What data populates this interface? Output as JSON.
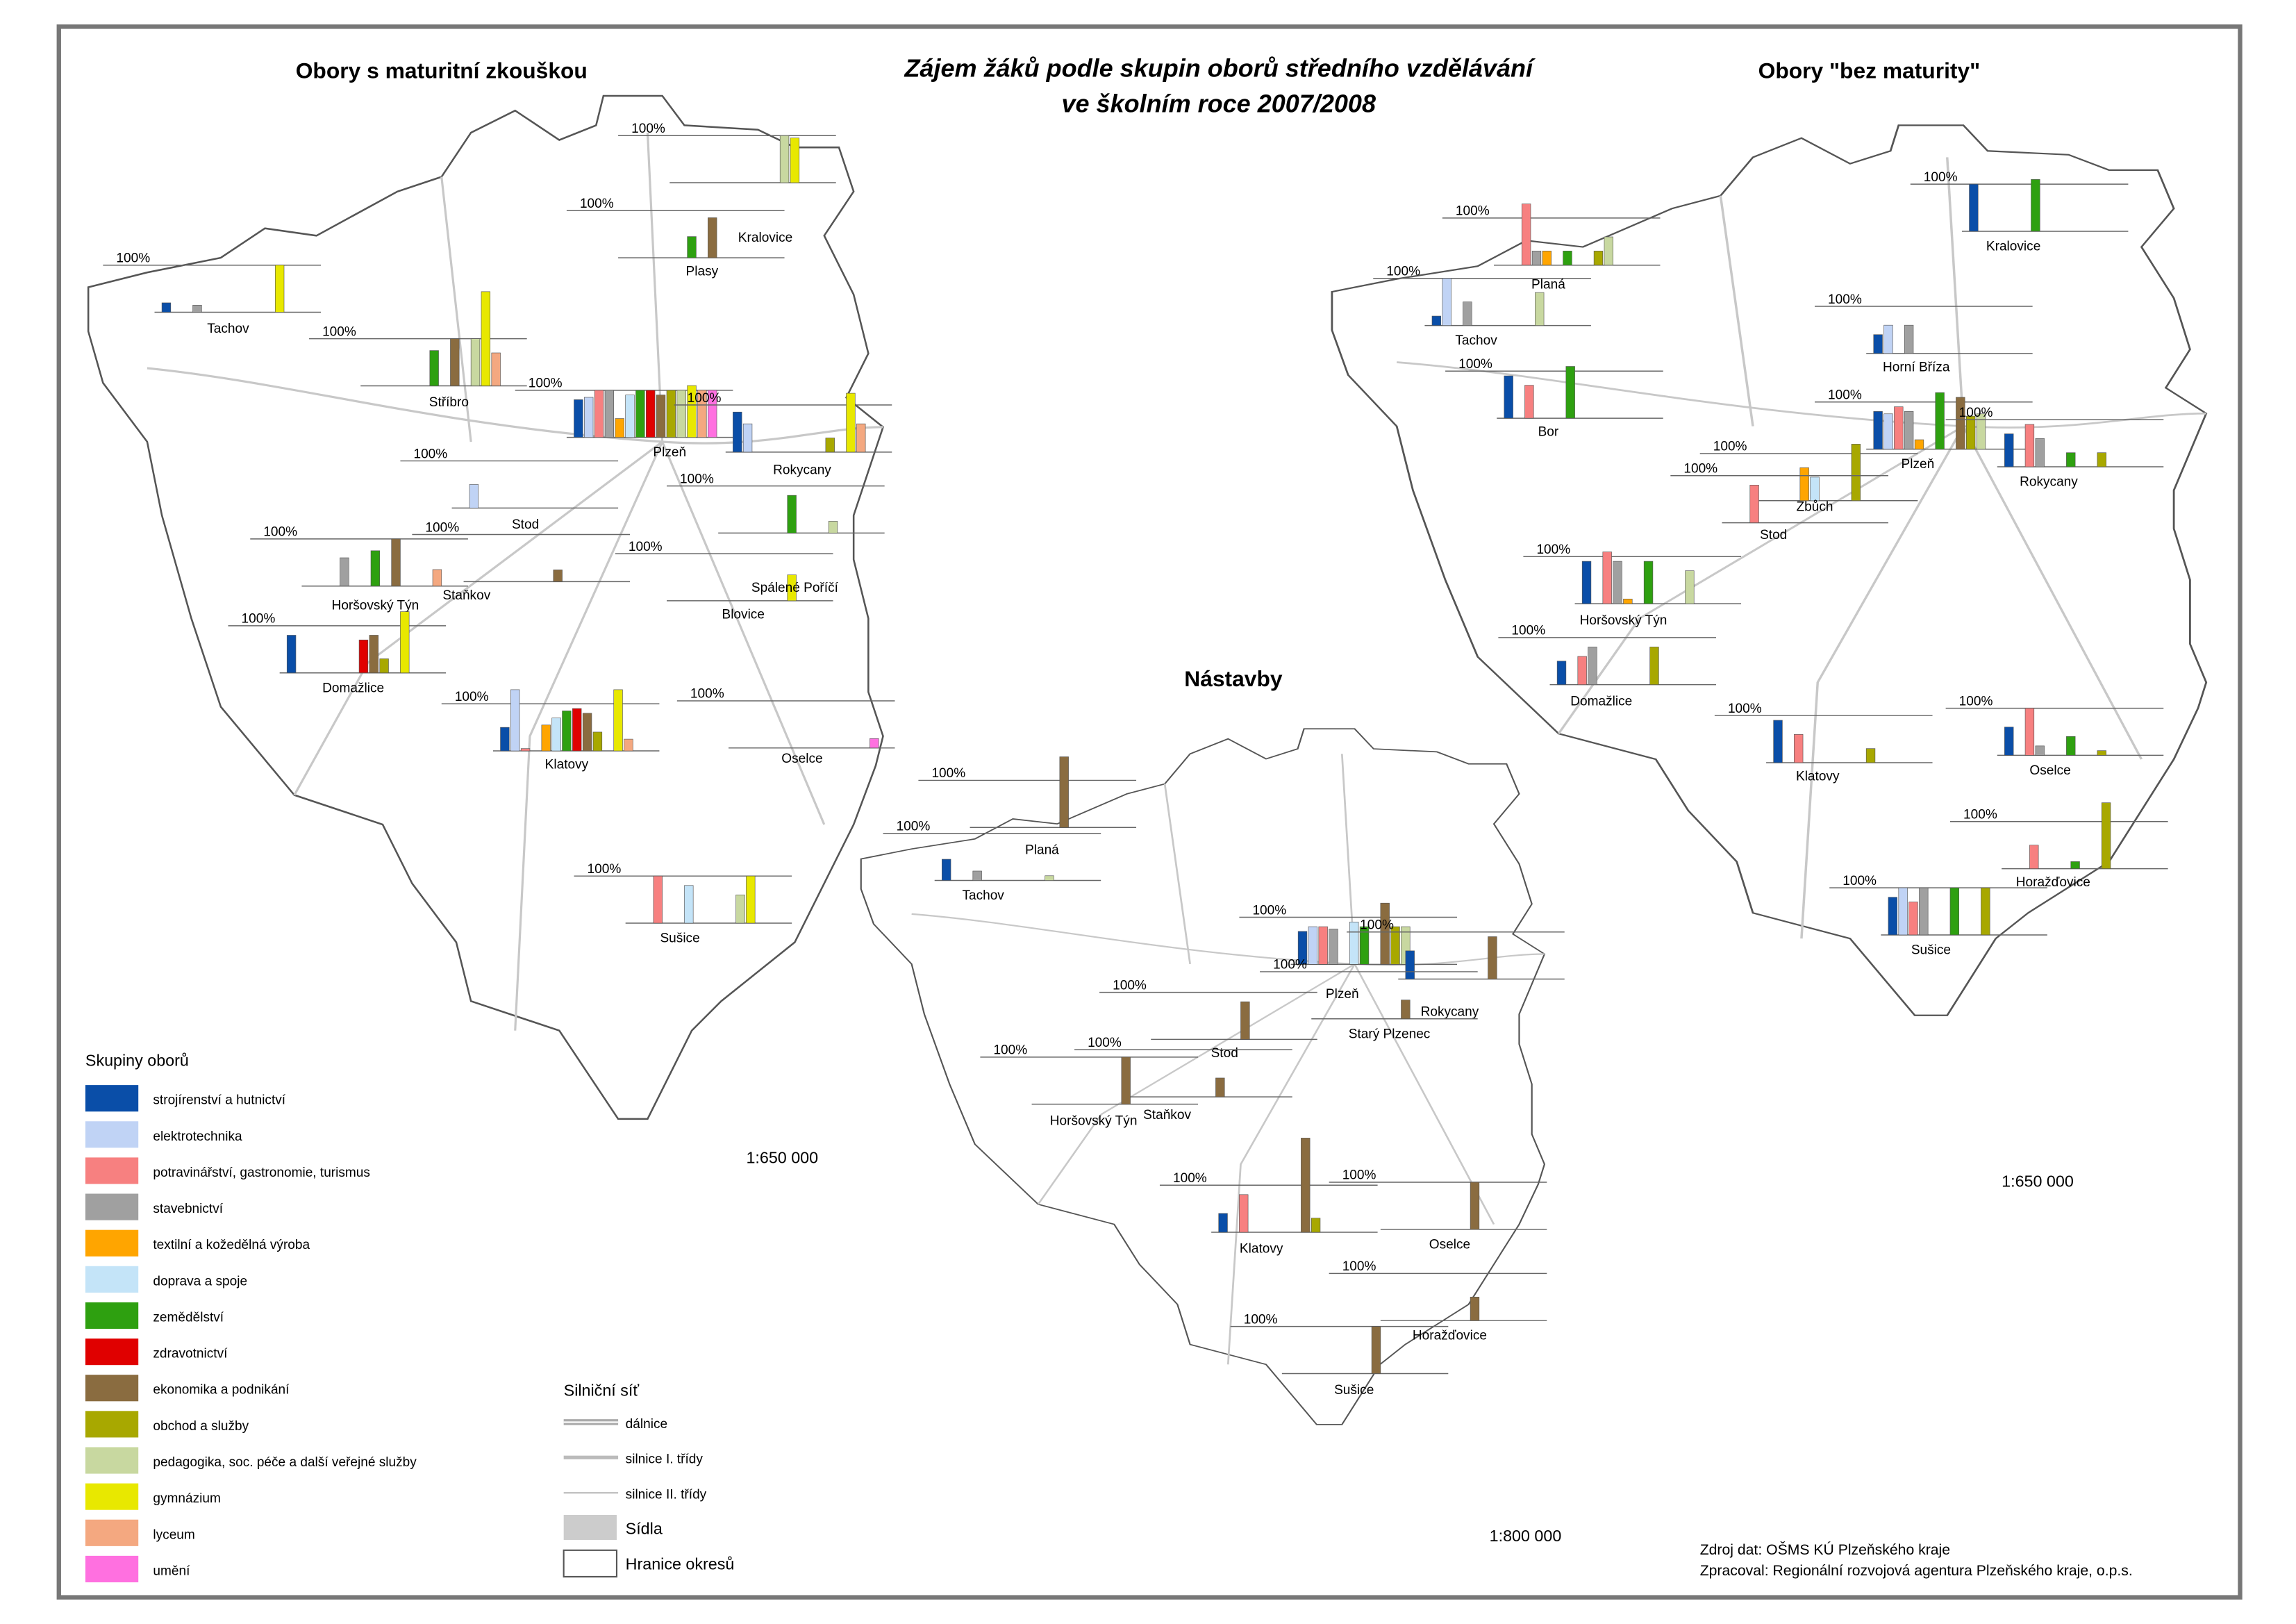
{
  "title": [
    "Zájem žáků podle skupin oborů středního vzdělávání",
    "ve školním roce 2007/2008"
  ],
  "reference_line": {
    "value": 100,
    "label": "100%"
  },
  "legend": {
    "title": "Skupiny oborů",
    "items": [
      {
        "name": "strojírenství a hutnictví",
        "color": "#0a4ea8"
      },
      {
        "name": "elektrotechnika",
        "color": "#c0d3f5"
      },
      {
        "name": "potravinářství, gastronomie, turismus",
        "color": "#f78080"
      },
      {
        "name": "stavebnictví",
        "color": "#a0a0a0"
      },
      {
        "name": "textilní a kožedělná výroba",
        "color": "#ffa500"
      },
      {
        "name": "doprava a spoje",
        "color": "#c4e4f8"
      },
      {
        "name": "zemědělství",
        "color": "#2ea010"
      },
      {
        "name": "zdravotnictví",
        "color": "#e00000"
      },
      {
        "name": "ekonomika a podnikání",
        "color": "#8a6c40"
      },
      {
        "name": "obchod a služby",
        "color": "#a8a800"
      },
      {
        "name": "pedagogika, soc. péče a další veřejné služby",
        "color": "#c8d8a0"
      },
      {
        "name": "gymnázium",
        "color": "#e8e800"
      },
      {
        "name": "lyceum",
        "color": "#f4a880"
      },
      {
        "name": "umění",
        "color": "#ff70e0"
      }
    ]
  },
  "road_legend": {
    "title": "Silniční síť",
    "items": [
      "dálnice",
      "silnice I. třídy",
      "silnice II. třídy",
      "Sídla",
      "Hranice okresů"
    ]
  },
  "source": [
    "Zdroj dat: OŠMS KÚ Plzeňského kraje",
    "Zpracoval: Regionální rozvojová agentura Plzeňského kraje, o.p.s."
  ],
  "maps": [
    {
      "title": "Obory s maturitní zkouškou",
      "scale": "1:650 000",
      "towns": [
        {
          "name": "Kralovice",
          "values": [
            null,
            null,
            null,
            null,
            null,
            null,
            null,
            null,
            null,
            null,
            100,
            95,
            null,
            null
          ]
        },
        {
          "name": "Plasy",
          "values": [
            null,
            null,
            null,
            null,
            null,
            null,
            45,
            null,
            85,
            null,
            null,
            null,
            null,
            null
          ]
        },
        {
          "name": "Tachov",
          "values": [
            20,
            null,
            null,
            15,
            null,
            null,
            null,
            null,
            null,
            null,
            null,
            100,
            null,
            null
          ]
        },
        {
          "name": "Stříbro",
          "values": [
            null,
            null,
            null,
            null,
            null,
            null,
            75,
            null,
            100,
            null,
            100,
            200,
            70,
            null
          ]
        },
        {
          "name": "Plzeň",
          "values": [
            80,
            85,
            100,
            100,
            40,
            90,
            100,
            100,
            90,
            100,
            100,
            110,
            100,
            100
          ]
        },
        {
          "name": "Rokycany",
          "values": [
            85,
            60,
            null,
            null,
            null,
            null,
            null,
            null,
            null,
            30,
            null,
            125,
            60,
            null
          ]
        },
        {
          "name": "Stod",
          "values": [
            null,
            50,
            null,
            null,
            null,
            null,
            null,
            null,
            null,
            null,
            null,
            null,
            null,
            null
          ]
        },
        {
          "name": "Horšovský Týn",
          "values": [
            null,
            null,
            null,
            60,
            null,
            null,
            75,
            null,
            100,
            null,
            null,
            null,
            35,
            null
          ]
        },
        {
          "name": "Staňkov",
          "values": [
            null,
            null,
            null,
            null,
            null,
            null,
            null,
            null,
            25,
            null,
            null,
            null,
            null,
            null
          ]
        },
        {
          "name": "Blovice",
          "values": [
            null,
            null,
            null,
            null,
            null,
            null,
            80,
            null,
            null,
            null,
            25,
            null,
            null,
            null
          ]
        },
        {
          "name": "Spálené Poříčí",
          "values": [
            null,
            null,
            null,
            null,
            null,
            null,
            null,
            null,
            null,
            null,
            null,
            55,
            null,
            null
          ]
        },
        {
          "name": "Domažlice",
          "values": [
            80,
            null,
            null,
            null,
            null,
            null,
            null,
            70,
            80,
            30,
            null,
            130,
            null,
            null
          ]
        },
        {
          "name": "Klatovy",
          "values": [
            50,
            130,
            5,
            null,
            55,
            70,
            85,
            90,
            80,
            40,
            null,
            130,
            25,
            null
          ]
        },
        {
          "name": "Oselce",
          "values": [
            null,
            null,
            null,
            null,
            null,
            null,
            null,
            null,
            null,
            null,
            null,
            null,
            null,
            20
          ]
        },
        {
          "name": "Sušice",
          "values": [
            null,
            null,
            100,
            null,
            null,
            80,
            null,
            null,
            null,
            null,
            60,
            100,
            null,
            null
          ]
        }
      ]
    },
    {
      "title": "Nástavby",
      "scale": "1:800 000",
      "towns": [
        {
          "name": "Planá",
          "values": [
            null,
            null,
            null,
            null,
            null,
            null,
            null,
            null,
            150,
            null,
            null,
            null,
            null,
            null
          ]
        },
        {
          "name": "Tachov",
          "values": [
            45,
            null,
            null,
            20,
            null,
            null,
            null,
            null,
            null,
            null,
            10,
            null,
            null,
            null
          ]
        },
        {
          "name": "Plzeň",
          "values": [
            70,
            80,
            80,
            75,
            null,
            90,
            80,
            null,
            130,
            80,
            80,
            null,
            null,
            null
          ]
        },
        {
          "name": "Rokycany",
          "values": [
            60,
            null,
            null,
            null,
            null,
            null,
            null,
            null,
            90,
            null,
            null,
            null,
            null,
            null
          ]
        },
        {
          "name": "Starý Plzenec",
          "values": [
            null,
            null,
            null,
            null,
            null,
            null,
            null,
            null,
            40,
            null,
            null,
            null,
            null,
            null
          ]
        },
        {
          "name": "Stod",
          "values": [
            null,
            null,
            null,
            null,
            null,
            null,
            null,
            null,
            80,
            null,
            null,
            null,
            null,
            null
          ]
        },
        {
          "name": "Staňkov",
          "values": [
            null,
            null,
            null,
            null,
            null,
            null,
            null,
            null,
            40,
            null,
            null,
            null,
            null,
            null
          ]
        },
        {
          "name": "Horšovský Týn",
          "values": [
            null,
            null,
            null,
            null,
            null,
            null,
            null,
            null,
            100,
            null,
            null,
            null,
            null,
            null
          ]
        },
        {
          "name": "Klatovy",
          "values": [
            40,
            null,
            80,
            null,
            null,
            null,
            null,
            null,
            200,
            30,
            null,
            null,
            null,
            null
          ]
        },
        {
          "name": "Oselce",
          "values": [
            null,
            null,
            null,
            null,
            null,
            null,
            null,
            null,
            100,
            null,
            null,
            null,
            null,
            null
          ]
        },
        {
          "name": "Horažďovice",
          "values": [
            null,
            null,
            null,
            null,
            null,
            null,
            null,
            null,
            50,
            null,
            null,
            null,
            null,
            null
          ]
        },
        {
          "name": "Sušice",
          "values": [
            null,
            null,
            null,
            null,
            null,
            null,
            null,
            null,
            100,
            null,
            null,
            null,
            null,
            null
          ]
        }
      ]
    },
    {
      "title": "Obory \"bez maturity\"",
      "scale": "1:650 000",
      "towns": [
        {
          "name": "Kralovice",
          "values": [
            100,
            null,
            null,
            null,
            null,
            null,
            110,
            null,
            null,
            null,
            null,
            null,
            null,
            null
          ]
        },
        {
          "name": "Planá",
          "values": [
            null,
            null,
            130,
            30,
            30,
            null,
            30,
            null,
            null,
            30,
            60,
            null,
            null,
            null
          ]
        },
        {
          "name": "Tachov",
          "values": [
            20,
            100,
            null,
            50,
            null,
            null,
            null,
            null,
            null,
            null,
            70,
            null,
            null,
            null
          ]
        },
        {
          "name": "Horní Bříza",
          "values": [
            40,
            60,
            null,
            60,
            null,
            null,
            null,
            null,
            null,
            null,
            null,
            null,
            null,
            null
          ]
        },
        {
          "name": "Bor",
          "values": [
            90,
            null,
            70,
            null,
            null,
            null,
            110,
            null,
            null,
            null,
            null,
            null,
            null,
            null
          ]
        },
        {
          "name": "Plzeň",
          "values": [
            80,
            75,
            90,
            80,
            20,
            null,
            120,
            null,
            110,
            70,
            75,
            null,
            null,
            null
          ]
        },
        {
          "name": "Zbůch",
          "values": [
            null,
            null,
            null,
            null,
            70,
            50,
            null,
            null,
            null,
            120,
            null,
            null,
            null,
            null
          ]
        },
        {
          "name": "Stod",
          "values": [
            null,
            null,
            80,
            null,
            null,
            null,
            null,
            null,
            null,
            null,
            null,
            null,
            null,
            null
          ]
        },
        {
          "name": "Rokycany",
          "values": [
            70,
            null,
            90,
            60,
            null,
            null,
            30,
            null,
            null,
            30,
            null,
            null,
            null,
            null
          ]
        },
        {
          "name": "Horšovský Týn",
          "values": [
            90,
            null,
            110,
            90,
            10,
            null,
            90,
            null,
            null,
            null,
            70,
            null,
            null,
            null
          ]
        },
        {
          "name": "Domažlice",
          "values": [
            50,
            null,
            60,
            80,
            null,
            null,
            null,
            null,
            null,
            80,
            null,
            null,
            null,
            null
          ]
        },
        {
          "name": "Klatovy",
          "values": [
            90,
            null,
            60,
            null,
            null,
            null,
            null,
            null,
            null,
            30,
            null,
            null,
            null,
            null
          ]
        },
        {
          "name": "Oselce",
          "values": [
            60,
            null,
            100,
            20,
            null,
            null,
            40,
            null,
            null,
            10,
            null,
            null,
            null,
            null
          ]
        },
        {
          "name": "Horažďovice",
          "values": [
            null,
            null,
            50,
            null,
            null,
            null,
            15,
            null,
            null,
            140,
            null,
            null,
            null,
            null
          ]
        },
        {
          "name": "Sušice",
          "values": [
            80,
            100,
            70,
            100,
            null,
            null,
            100,
            null,
            null,
            100,
            null,
            null,
            null,
            null
          ]
        }
      ]
    }
  ]
}
